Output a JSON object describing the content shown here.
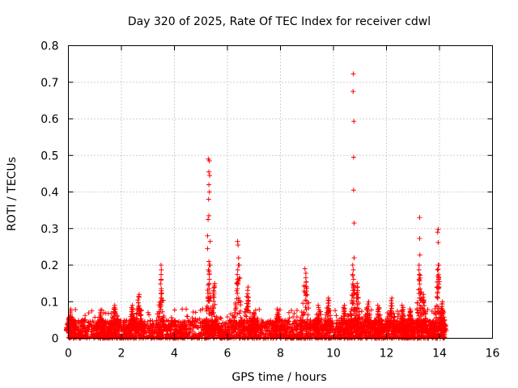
{
  "chart_data": {
    "type": "scatter",
    "title": "Day 320 of 2025, Rate Of TEC Index for receiver cdwl",
    "xlabel": "GPS time / hours",
    "ylabel": "ROTI / TECUs",
    "xlim": [
      0,
      16
    ],
    "ylim": [
      0,
      0.8
    ],
    "xticks": [
      0,
      2,
      4,
      6,
      8,
      10,
      12,
      14,
      16
    ],
    "xtick_labels": [
      "0",
      "2",
      "4",
      "6",
      "8",
      "10",
      "12",
      "14",
      "16"
    ],
    "yticks": [
      0,
      0.1,
      0.2,
      0.3,
      0.4,
      0.5,
      0.6,
      0.7,
      0.8
    ],
    "ytick_labels": [
      "0",
      "0.1",
      "0.2",
      "0.3",
      "0.4",
      "0.5",
      "0.6",
      "0.7",
      "0.8"
    ],
    "grid": true,
    "marker": "+",
    "color": "#ff0000",
    "x_data_range": [
      0,
      14.2
    ],
    "baseline_band": [
      0.0,
      0.04
    ],
    "peaks": [
      {
        "x": 0.1,
        "y": 0.08
      },
      {
        "x": 1.2,
        "y": 0.07
      },
      {
        "x": 1.75,
        "y": 0.09
      },
      {
        "x": 2.4,
        "y": 0.09
      },
      {
        "x": 2.65,
        "y": 0.12
      },
      {
        "x": 3.5,
        "y": 0.2
      },
      {
        "x": 5.3,
        "y": 0.49
      },
      {
        "x": 5.5,
        "y": 0.15
      },
      {
        "x": 6.4,
        "y": 0.27
      },
      {
        "x": 6.75,
        "y": 0.14
      },
      {
        "x": 7.0,
        "y": 0.07
      },
      {
        "x": 7.9,
        "y": 0.08
      },
      {
        "x": 8.95,
        "y": 0.19
      },
      {
        "x": 9.45,
        "y": 0.09
      },
      {
        "x": 9.8,
        "y": 0.11
      },
      {
        "x": 10.4,
        "y": 0.09
      },
      {
        "x": 10.75,
        "y": 0.72
      },
      {
        "x": 10.9,
        "y": 0.15
      },
      {
        "x": 11.3,
        "y": 0.1
      },
      {
        "x": 11.7,
        "y": 0.09
      },
      {
        "x": 12.2,
        "y": 0.11
      },
      {
        "x": 12.6,
        "y": 0.09
      },
      {
        "x": 12.9,
        "y": 0.08
      },
      {
        "x": 13.25,
        "y": 0.33
      },
      {
        "x": 13.4,
        "y": 0.12
      },
      {
        "x": 13.95,
        "y": 0.3
      },
      {
        "x": 14.1,
        "y": 0.1
      }
    ],
    "spike_points": [
      {
        "x": 5.28,
        "y": 0.49
      },
      {
        "x": 5.32,
        "y": 0.485
      },
      {
        "x": 5.3,
        "y": 0.455
      },
      {
        "x": 5.33,
        "y": 0.445
      },
      {
        "x": 5.3,
        "y": 0.42
      },
      {
        "x": 5.32,
        "y": 0.4
      },
      {
        "x": 5.29,
        "y": 0.38
      },
      {
        "x": 5.3,
        "y": 0.335
      },
      {
        "x": 5.27,
        "y": 0.325
      },
      {
        "x": 5.25,
        "y": 0.28
      },
      {
        "x": 5.35,
        "y": 0.265
      },
      {
        "x": 5.25,
        "y": 0.245
      },
      {
        "x": 5.3,
        "y": 0.21
      },
      {
        "x": 5.35,
        "y": 0.2
      },
      {
        "x": 10.75,
        "y": 0.723
      },
      {
        "x": 10.74,
        "y": 0.675
      },
      {
        "x": 10.77,
        "y": 0.593
      },
      {
        "x": 10.76,
        "y": 0.495
      },
      {
        "x": 10.76,
        "y": 0.405
      },
      {
        "x": 10.78,
        "y": 0.315
      },
      {
        "x": 10.78,
        "y": 0.22
      },
      {
        "x": 13.25,
        "y": 0.33
      },
      {
        "x": 13.25,
        "y": 0.273
      },
      {
        "x": 13.26,
        "y": 0.228
      },
      {
        "x": 13.27,
        "y": 0.165
      },
      {
        "x": 13.95,
        "y": 0.298
      },
      {
        "x": 13.93,
        "y": 0.29
      },
      {
        "x": 13.95,
        "y": 0.262
      },
      {
        "x": 13.95,
        "y": 0.2
      },
      {
        "x": 13.97,
        "y": 0.165
      },
      {
        "x": 13.98,
        "y": 0.14
      },
      {
        "x": 6.38,
        "y": 0.265
      },
      {
        "x": 6.4,
        "y": 0.255
      },
      {
        "x": 6.42,
        "y": 0.22
      },
      {
        "x": 6.45,
        "y": 0.2
      },
      {
        "x": 6.47,
        "y": 0.165
      }
    ]
  }
}
